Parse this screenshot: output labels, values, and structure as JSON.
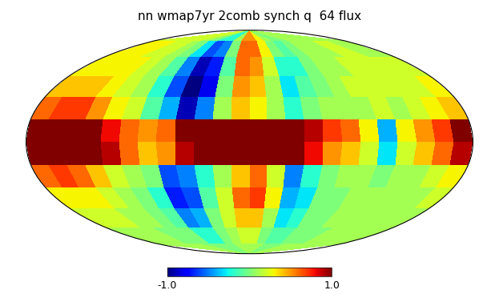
{
  "chart_data": {
    "type": "mollweide_map",
    "title": "nn wmap7yr 2comb synch q  64 flux",
    "lon_edges": [
      -180,
      -165,
      -150,
      -135,
      -120,
      -105,
      -90,
      -75,
      -60,
      -45,
      -30,
      -15,
      0,
      15,
      30,
      45,
      60,
      75,
      90,
      105,
      120,
      135,
      150,
      165,
      180
    ],
    "lat_edges": [
      90,
      75,
      60,
      45,
      30,
      15,
      0,
      -15,
      -30,
      -45,
      -60,
      -75,
      -90
    ],
    "cells": [
      [
        0.2,
        0.2,
        0.2,
        0.2,
        0.2,
        0.2,
        0.1,
        0.0,
        -0.2,
        -0.2,
        0.1,
        0.5,
        0.5,
        0.3,
        0.1,
        0.0,
        0.0,
        0.1,
        0.1,
        0.1,
        0.1,
        0.1,
        0.1,
        0.1
      ],
      [
        0.3,
        0.3,
        0.3,
        0.2,
        0.2,
        0.1,
        0.0,
        -0.3,
        -0.6,
        -0.5,
        0.0,
        0.6,
        0.6,
        0.3,
        0.0,
        -0.1,
        0.0,
        0.1,
        0.1,
        0.1,
        0.2,
        0.2,
        0.1,
        0.1
      ],
      [
        0.3,
        0.3,
        0.3,
        0.3,
        0.2,
        0.1,
        -0.1,
        -0.5,
        -0.9,
        -0.7,
        -0.1,
        0.6,
        0.5,
        0.2,
        -0.2,
        -0.2,
        0.0,
        0.1,
        0.1,
        0.2,
        0.2,
        0.2,
        0.2,
        0.2
      ],
      [
        0.4,
        0.4,
        0.4,
        0.3,
        0.2,
        0.1,
        -0.2,
        -0.6,
        -1.0,
        -0.8,
        0.0,
        0.5,
        0.4,
        0.1,
        -0.3,
        -0.1,
        0.0,
        0.1,
        0.2,
        0.2,
        0.2,
        0.2,
        0.2,
        0.3
      ],
      [
        0.6,
        0.7,
        0.7,
        0.5,
        0.3,
        0.2,
        -0.1,
        -0.4,
        -0.9,
        -0.5,
        0.1,
        0.4,
        0.3,
        0.1,
        -0.2,
        0.0,
        0.1,
        0.1,
        0.1,
        0.2,
        0.1,
        0.2,
        0.3,
        0.4
      ],
      [
        1.2,
        1.5,
        1.5,
        1.2,
        0.8,
        0.6,
        0.5,
        0.6,
        1.0,
        1.2,
        1.3,
        1.5,
        1.5,
        1.3,
        1.2,
        0.9,
        0.7,
        0.6,
        0.3,
        -0.4,
        0.3,
        0.5,
        0.7,
        1.0
      ],
      [
        1.3,
        1.5,
        1.5,
        1.3,
        0.9,
        0.6,
        0.4,
        0.5,
        0.9,
        1.1,
        1.2,
        1.4,
        1.4,
        1.2,
        1.0,
        0.8,
        0.5,
        0.4,
        0.2,
        -0.3,
        0.2,
        0.4,
        0.6,
        0.9
      ],
      [
        0.6,
        0.7,
        0.6,
        0.4,
        0.2,
        0.1,
        0.0,
        -0.6,
        -0.5,
        -0.2,
        0.1,
        0.4,
        0.6,
        0.2,
        -0.5,
        -0.2,
        0.0,
        0.1,
        0.1,
        0.0,
        0.1,
        0.1,
        0.2,
        0.3
      ],
      [
        0.3,
        0.3,
        0.3,
        0.2,
        0.1,
        0.0,
        -0.2,
        -0.7,
        -0.6,
        -0.1,
        0.2,
        0.6,
        0.7,
        0.3,
        -0.4,
        -0.3,
        0.0,
        0.0,
        0.1,
        0.1,
        0.1,
        0.1,
        0.1,
        0.2
      ],
      [
        0.2,
        0.2,
        0.2,
        0.1,
        0.1,
        0.0,
        -0.1,
        -0.5,
        -0.4,
        0.0,
        0.2,
        0.4,
        0.4,
        0.1,
        -0.3,
        -0.2,
        0.0,
        0.0,
        0.1,
        0.1,
        0.1,
        0.1,
        0.1,
        0.1
      ],
      [
        0.1,
        0.1,
        0.1,
        0.1,
        0.0,
        0.0,
        0.0,
        -0.2,
        -0.2,
        0.0,
        0.1,
        0.2,
        0.2,
        0.0,
        -0.1,
        -0.1,
        0.0,
        0.0,
        0.0,
        0.1,
        0.1,
        0.1,
        0.1,
        0.1
      ],
      [
        0.1,
        0.1,
        0.1,
        0.1,
        0.1,
        0.1,
        0.0,
        0.0,
        0.0,
        0.0,
        0.1,
        0.1,
        0.1,
        0.1,
        0.0,
        0.0,
        0.0,
        0.1,
        0.1,
        0.1,
        0.1,
        0.1,
        0.1,
        0.1
      ]
    ],
    "colorbar": {
      "range": [
        -1.0,
        1.0
      ],
      "ticks": [
        {
          "value": -1.0,
          "label": "-1.0"
        },
        {
          "value": 1.0,
          "label": "1.0"
        }
      ]
    },
    "grid": false,
    "tick_labels": false
  }
}
